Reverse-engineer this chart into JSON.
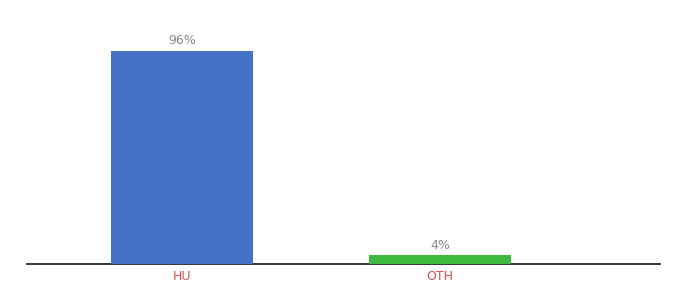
{
  "categories": [
    "HU",
    "OTH"
  ],
  "values": [
    96,
    4
  ],
  "bar_colors": [
    "#4472c4",
    "#3dba3d"
  ],
  "bar_labels": [
    "96%",
    "4%"
  ],
  "ylim": [
    0,
    108
  ],
  "background_color": "#ffffff",
  "label_color": "#888888",
  "axis_label_color": "#e05050",
  "label_fontsize": 9,
  "tick_fontsize": 9,
  "bar_width": 0.55,
  "x_positions": [
    1,
    2
  ],
  "xlim": [
    0.4,
    2.85
  ]
}
